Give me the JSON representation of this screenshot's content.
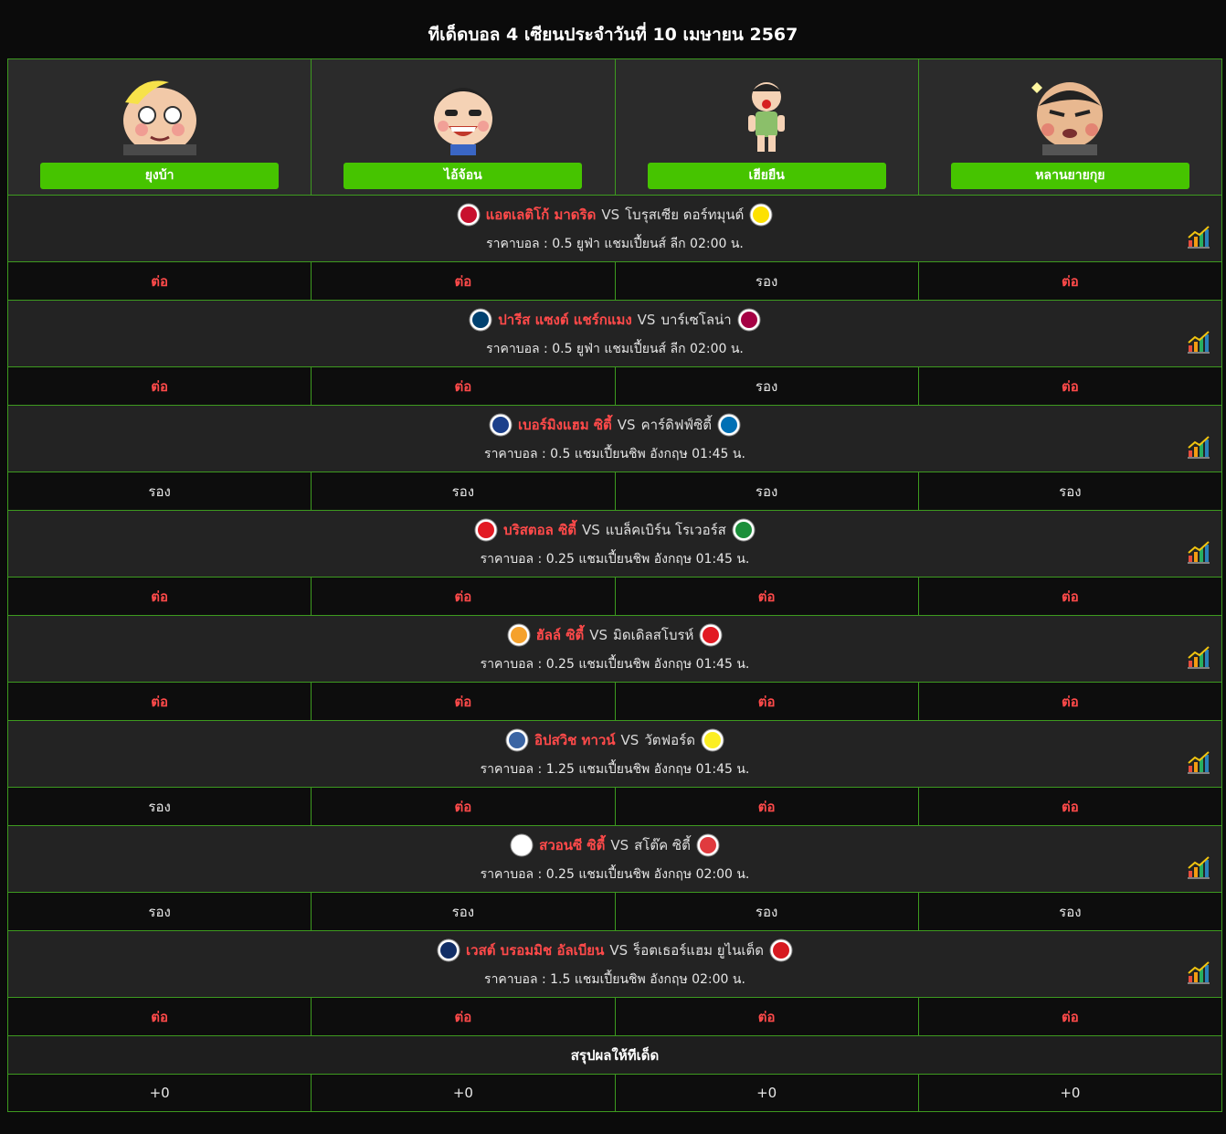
{
  "page": {
    "title": "ทีเด็ดบอล 4 เซียนประจำวันที่ 10 เมษายน 2567"
  },
  "tipsters": [
    {
      "name": "ยุงบ้า",
      "avatar_icon": "cartoon-face-1-icon"
    },
    {
      "name": "ไอ้จ้อน",
      "avatar_icon": "cartoon-face-2-icon"
    },
    {
      "name": "เฮียยืน",
      "avatar_icon": "cartoon-face-3-icon"
    },
    {
      "name": "หลานยายกุย",
      "avatar_icon": "cartoon-face-4-icon"
    }
  ],
  "matches": [
    {
      "home": "แอตเลติโก้ มาดริด",
      "vs": "VS",
      "away": "โบรุสเซีย ดอร์ทมุนด์",
      "odds": "ราคาบอล : 0.5 ยูฟ่า แชมเปี้ยนส์ ลีก 02:00 น.",
      "home_color": "#c8102e",
      "away_color": "#fde100",
      "picks": [
        "ต่อ",
        "ต่อ",
        "รอง",
        "ต่อ"
      ]
    },
    {
      "home": "ปารีส แซงต์ แชร์กแมง",
      "vs": "VS",
      "away": "บาร์เซโลน่า",
      "odds": "ราคาบอล : 0.5 ยูฟ่า แชมเปี้ยนส์ ลีก 02:00 น.",
      "home_color": "#004170",
      "away_color": "#a50044",
      "picks": [
        "ต่อ",
        "ต่อ",
        "รอง",
        "ต่อ"
      ]
    },
    {
      "home": "เบอร์มิงแฮม ซิตี้",
      "vs": "VS",
      "away": "คาร์ดิฟฟ์ซิตี้",
      "odds": "ราคาบอล : 0.5 แชมเปี้ยนชิพ อังกฤษ 01:45 น.",
      "home_color": "#1b3f8b",
      "away_color": "#0070b5",
      "picks": [
        "รอง",
        "รอง",
        "รอง",
        "รอง"
      ]
    },
    {
      "home": "บริสตอล ซิตี้",
      "vs": "VS",
      "away": "แบล็คเบิร์น โรเวอร์ส",
      "odds": "ราคาบอล : 0.25 แชมเปี้ยนชิพ อังกฤษ 01:45 น.",
      "home_color": "#e21a23",
      "away_color": "#1b8f3a",
      "picks": [
        "ต่อ",
        "ต่อ",
        "ต่อ",
        "ต่อ"
      ]
    },
    {
      "home": "ฮัลล์ ซิตี้",
      "vs": "VS",
      "away": "มิดเดิลสโบรห์",
      "odds": "ราคาบอล : 0.25 แชมเปี้ยนชิพ อังกฤษ 01:45 น.",
      "home_color": "#f5a12c",
      "away_color": "#e21a23",
      "picks": [
        "ต่อ",
        "ต่อ",
        "ต่อ",
        "ต่อ"
      ]
    },
    {
      "home": "อิปสวิช ทาวน์",
      "vs": "VS",
      "away": "วัตฟอร์ด",
      "odds": "ราคาบอล : 1.25 แชมเปี้ยนชิพ อังกฤษ 01:45 น.",
      "home_color": "#3a64a3",
      "away_color": "#fbee23",
      "picks": [
        "รอง",
        "ต่อ",
        "ต่อ",
        "ต่อ"
      ]
    },
    {
      "home": "สวอนซี ซิตี้",
      "vs": "VS",
      "away": "สโต๊ค ซิตี้",
      "odds": "ราคาบอล : 0.25 แชมเปี้ยนชิพ อังกฤษ 02:00 น.",
      "home_color": "#ffffff",
      "away_color": "#e03a3e",
      "picks": [
        "รอง",
        "รอง",
        "รอง",
        "รอง"
      ]
    },
    {
      "home": "เวสต์ บรอมมิช อัลเบียน",
      "vs": "VS",
      "away": "ร็อตเธอร์แฮม ยูไนเต็ด",
      "odds": "ราคาบอล : 1.5 แชมเปี้ยนชิพ อังกฤษ 02:00 น.",
      "home_color": "#122f67",
      "away_color": "#d71920",
      "picks": [
        "ต่อ",
        "ต่อ",
        "ต่อ",
        "ต่อ"
      ]
    }
  ],
  "summary": {
    "label": "สรุปผลให้ทีเด็ด",
    "scores": [
      "+0",
      "+0",
      "+0",
      "+0"
    ]
  },
  "colors": {
    "accent_green": "#46c400",
    "border_green": "#3d9a1f",
    "pick_red": "#ff4a4a"
  }
}
